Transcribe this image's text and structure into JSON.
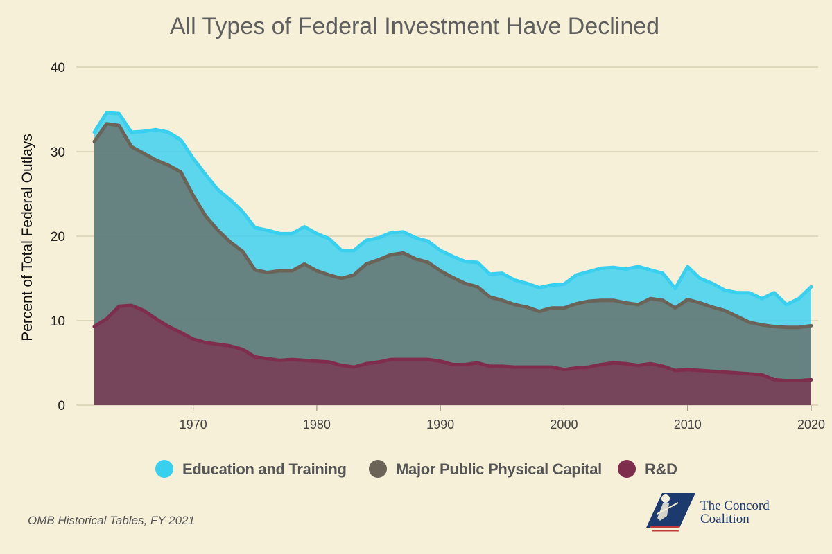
{
  "chart_data": {
    "type": "area",
    "title": "All Types of Federal Investment Have Declined",
    "ylabel": "Percent of Total Federal Outlays",
    "xlabel": "",
    "ylim": [
      0,
      40
    ],
    "xlim": [
      1962,
      2020
    ],
    "y_ticks": [
      0,
      10,
      20,
      30,
      40
    ],
    "x_ticks": [
      1970,
      1980,
      1990,
      2000,
      2010,
      2020
    ],
    "grid": true,
    "legend_position": "bottom",
    "stacked": true,
    "x": [
      1962,
      1963,
      1964,
      1965,
      1966,
      1967,
      1968,
      1969,
      1970,
      1971,
      1972,
      1973,
      1974,
      1975,
      1976,
      1977,
      1978,
      1979,
      1980,
      1981,
      1982,
      1983,
      1984,
      1985,
      1986,
      1987,
      1988,
      1989,
      1990,
      1991,
      1992,
      1993,
      1994,
      1995,
      1996,
      1997,
      1998,
      1999,
      2000,
      2001,
      2002,
      2003,
      2004,
      2005,
      2006,
      2007,
      2008,
      2009,
      2010,
      2011,
      2012,
      2013,
      2014,
      2015,
      2016,
      2017,
      2018,
      2019,
      2020
    ],
    "series": [
      {
        "name": "Education and Training",
        "color": "#39d0f0",
        "values_top": [
          32.3,
          34.6,
          34.5,
          32.3,
          32.4,
          32.6,
          32.3,
          31.4,
          29.2,
          27.3,
          25.5,
          24.3,
          22.9,
          21.0,
          20.7,
          20.3,
          20.3,
          21.1,
          20.3,
          19.7,
          18.3,
          18.3,
          19.5,
          19.8,
          20.4,
          20.5,
          19.8,
          19.4,
          18.3,
          17.6,
          17.0,
          16.9,
          15.5,
          15.6,
          14.8,
          14.4,
          13.9,
          14.2,
          14.3,
          15.4,
          15.8,
          16.2,
          16.3,
          16.1,
          16.4,
          16.0,
          15.6,
          13.8,
          16.4,
          15.0,
          14.4,
          13.6,
          13.3,
          13.3,
          12.6,
          13.3,
          11.9,
          12.6,
          14.0
        ]
      },
      {
        "name": "Major Public Physical Capital",
        "color": "#6b6358",
        "values_top": [
          31.2,
          33.3,
          33.1,
          30.6,
          29.8,
          29.0,
          28.4,
          27.6,
          24.8,
          22.4,
          20.7,
          19.3,
          18.2,
          16.0,
          15.7,
          15.9,
          15.9,
          16.7,
          15.9,
          15.4,
          15.0,
          15.4,
          16.7,
          17.2,
          17.8,
          18.0,
          17.3,
          16.9,
          15.9,
          15.1,
          14.4,
          14.0,
          12.8,
          12.4,
          11.9,
          11.6,
          11.1,
          11.5,
          11.5,
          12.0,
          12.3,
          12.4,
          12.4,
          12.1,
          11.9,
          12.6,
          12.4,
          11.5,
          12.5,
          12.1,
          11.6,
          11.2,
          10.5,
          9.8,
          9.5,
          9.3,
          9.2,
          9.2,
          9.4
        ]
      },
      {
        "name": "R&D",
        "color": "#7e2e4c",
        "values_top": [
          9.3,
          10.2,
          11.7,
          11.8,
          11.2,
          10.2,
          9.3,
          8.6,
          7.8,
          7.4,
          7.2,
          7.0,
          6.6,
          5.7,
          5.5,
          5.3,
          5.4,
          5.3,
          5.2,
          5.1,
          4.7,
          4.5,
          4.9,
          5.1,
          5.4,
          5.4,
          5.4,
          5.4,
          5.2,
          4.8,
          4.8,
          5.0,
          4.6,
          4.6,
          4.5,
          4.5,
          4.5,
          4.5,
          4.2,
          4.4,
          4.5,
          4.8,
          5.0,
          4.9,
          4.7,
          4.9,
          4.6,
          4.1,
          4.2,
          4.1,
          4.0,
          3.9,
          3.8,
          3.7,
          3.6,
          3.0,
          2.9,
          2.9,
          3.0
        ]
      }
    ]
  },
  "source": "OMB Historical Tables, FY 2021",
  "logo": {
    "line1": "The Concord",
    "line2": "Coalition",
    "icon": "concord-minuteman-logo"
  }
}
